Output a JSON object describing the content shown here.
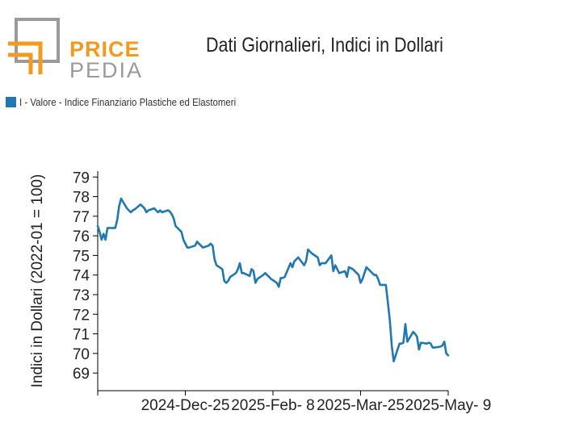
{
  "header": {
    "title": "Dati Giornalieri, Indici in Dollari",
    "logo": {
      "line1": "PRICE",
      "line2": "PEDIA",
      "colors": {
        "orange": "#F39A1E",
        "gray": "#9A9A9A"
      }
    }
  },
  "legend": {
    "label": "I - Valore - Indice Finanziario Plastiche ed Elastomeri",
    "color": "#1f77b4"
  },
  "chart_data": {
    "type": "line",
    "ylabel": "Indici in Dollari (2022-01 = 100)",
    "xlabel": "",
    "x_ticks": [
      "2024-Dec-25",
      "2025-Feb- 8",
      "2025-Mar-25",
      "2025-May- 9"
    ],
    "y_ticks": [
      69,
      70,
      71,
      72,
      73,
      74,
      75,
      76,
      77,
      78,
      79
    ],
    "ylim": [
      68.1,
      79.3
    ],
    "grid": false,
    "legend_position": "top-left",
    "series": [
      {
        "name": "I - Valore - Indice Finanziario Plastiche ed Elastomeri",
        "color": "#1f77b4",
        "dates": [
          "2024-Nov-10",
          "2024-Nov-11",
          "2024-Nov-12",
          "2024-Nov-13",
          "2024-Nov-14",
          "2024-Nov-15",
          "2024-Nov-18",
          "2024-Nov-19",
          "2024-Nov-20",
          "2024-Nov-21",
          "2024-Nov-22",
          "2024-Nov-25",
          "2024-Nov-26",
          "2024-Nov-27",
          "2024-Nov-28",
          "2024-Nov-29",
          "2024-Dec-02",
          "2024-Dec-03",
          "2024-Dec-04",
          "2024-Dec-05",
          "2024-Dec-06",
          "2024-Dec-09",
          "2024-Dec-10",
          "2024-Dec-11",
          "2024-Dec-12",
          "2024-Dec-13",
          "2024-Dec-16",
          "2024-Dec-17",
          "2024-Dec-18",
          "2024-Dec-19",
          "2024-Dec-20",
          "2024-Dec-23",
          "2024-Dec-24",
          "2024-Dec-26",
          "2024-Dec-27",
          "2024-Dec-30",
          "2024-Dec-31",
          "2025-Jan-02",
          "2025-Jan-03",
          "2025-Jan-06",
          "2025-Jan-07",
          "2025-Jan-08",
          "2025-Jan-09",
          "2025-Jan-10",
          "2025-Jan-13",
          "2025-Jan-14",
          "2025-Jan-15",
          "2025-Jan-16",
          "2025-Jan-17",
          "2025-Jan-20",
          "2025-Jan-21",
          "2025-Jan-22",
          "2025-Jan-23",
          "2025-Jan-24",
          "2025-Jan-27",
          "2025-Jan-28",
          "2025-Jan-29",
          "2025-Jan-30",
          "2025-Jan-31",
          "2025-Feb-03",
          "2025-Feb-04",
          "2025-Feb-05",
          "2025-Feb-06",
          "2025-Feb-07",
          "2025-Feb-10",
          "2025-Feb-11",
          "2025-Feb-12",
          "2025-Feb-13",
          "2025-Feb-14",
          "2025-Feb-17",
          "2025-Feb-18",
          "2025-Feb-19",
          "2025-Feb-20",
          "2025-Feb-21",
          "2025-Feb-24",
          "2025-Feb-25",
          "2025-Feb-26",
          "2025-Feb-27",
          "2025-Feb-28",
          "2025-Mar-03",
          "2025-Mar-04",
          "2025-Mar-05",
          "2025-Mar-06",
          "2025-Mar-07",
          "2025-Mar-10",
          "2025-Mar-11",
          "2025-Mar-12",
          "2025-Mar-13",
          "2025-Mar-14",
          "2025-Mar-17",
          "2025-Mar-18",
          "2025-Mar-19",
          "2025-Mar-20",
          "2025-Mar-21",
          "2025-Mar-24",
          "2025-Mar-25",
          "2025-Mar-26",
          "2025-Mar-27",
          "2025-Mar-28",
          "2025-Mar-31",
          "2025-Apr-01",
          "2025-Apr-02",
          "2025-Apr-03",
          "2025-Apr-04",
          "2025-Apr-07",
          "2025-Apr-08",
          "2025-Apr-09",
          "2025-Apr-10",
          "2025-Apr-11",
          "2025-Apr-14",
          "2025-Apr-15",
          "2025-Apr-16",
          "2025-Apr-17",
          "2025-Apr-18",
          "2025-Apr-21",
          "2025-Apr-22",
          "2025-Apr-23",
          "2025-Apr-24",
          "2025-Apr-25",
          "2025-Apr-28",
          "2025-Apr-29",
          "2025-Apr-30",
          "2025-May-01",
          "2025-May-02",
          "2025-May-05",
          "2025-May-06",
          "2025-May-07",
          "2025-May-08",
          "2025-May-09"
        ],
        "values": [
          76.5,
          76.2,
          75.8,
          76.1,
          75.8,
          76.4,
          76.4,
          76.4,
          76.8,
          77.5,
          77.9,
          77.4,
          77.3,
          77.2,
          77.3,
          77.35,
          77.6,
          77.5,
          77.4,
          77.2,
          77.3,
          77.4,
          77.3,
          77.2,
          77.3,
          77.2,
          77.3,
          77.25,
          77.1,
          76.9,
          76.5,
          76.2,
          75.8,
          75.4,
          75.4,
          75.5,
          75.7,
          75.5,
          75.4,
          75.5,
          75.6,
          75.5,
          74.8,
          74.5,
          74.3,
          73.7,
          73.6,
          73.7,
          73.9,
          74.1,
          74.3,
          74.6,
          74.1,
          74.1,
          73.95,
          74.3,
          74.2,
          73.6,
          73.8,
          74.0,
          74.1,
          74.0,
          73.9,
          73.8,
          73.6,
          73.4,
          73.85,
          73.85,
          73.9,
          74.6,
          74.4,
          74.7,
          74.8,
          74.9,
          74.5,
          74.7,
          75.3,
          75.2,
          75.1,
          74.9,
          74.5,
          74.6,
          74.6,
          74.6,
          75.0,
          74.2,
          74.5,
          74.3,
          74.1,
          74.2,
          73.9,
          74.4,
          74.35,
          74.3,
          74.0,
          73.6,
          73.8,
          74.1,
          74.4,
          74.1,
          74.0,
          74.0,
          73.8,
          73.5,
          73.5,
          72.6,
          71.7,
          70.4,
          69.6,
          70.5,
          70.5,
          70.55,
          71.5,
          70.6,
          71.1,
          71.0,
          70.85,
          70.2,
          70.55,
          70.5,
          70.55,
          70.5,
          70.3,
          70.3,
          70.35,
          70.4,
          70.6,
          70.0,
          69.9
        ]
      }
    ]
  }
}
